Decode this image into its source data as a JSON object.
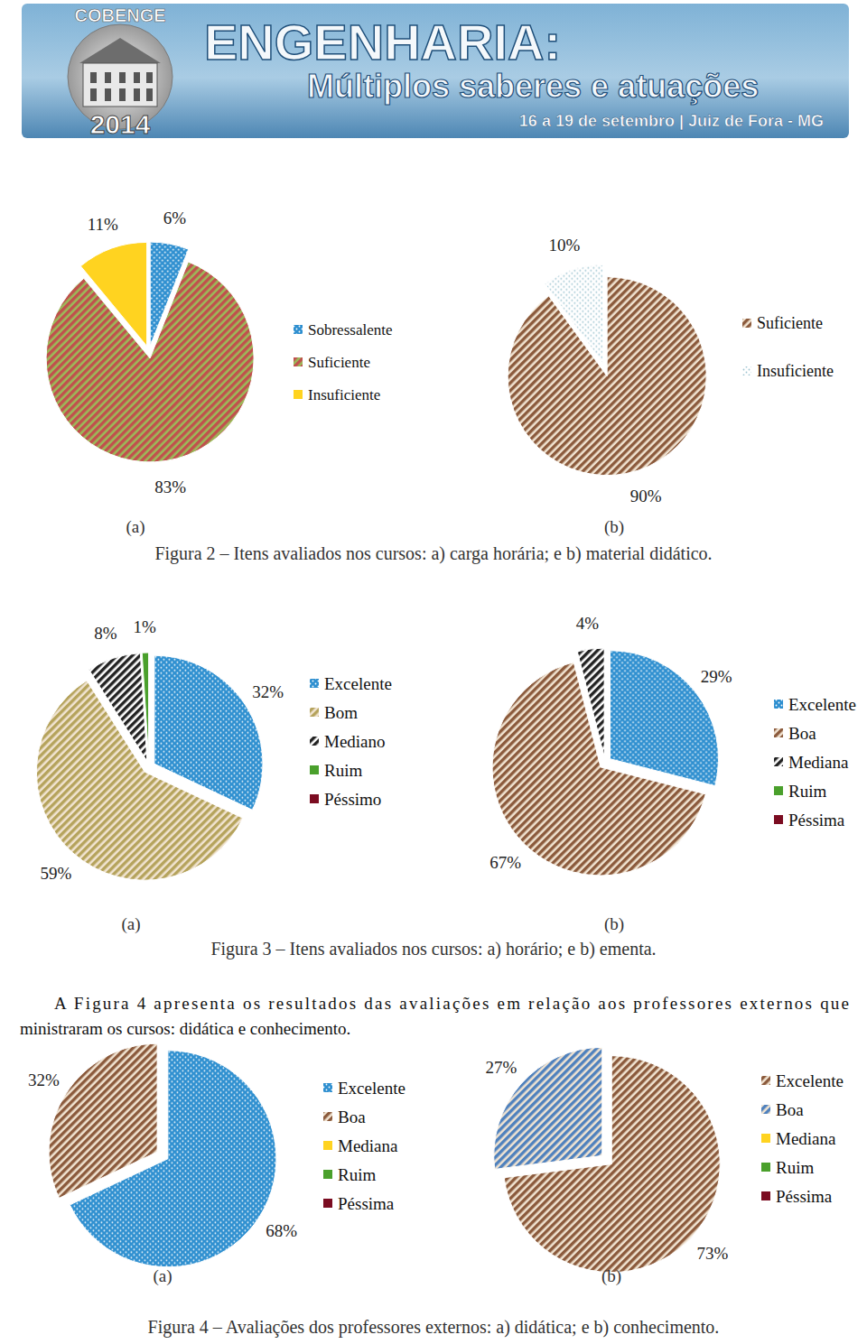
{
  "header": {
    "brand": "COBENGE",
    "year": "2014",
    "title": "ENGENHARIA:",
    "subtitle": "Múltiplos saberes e atuações",
    "dates": "16 a 19 de setembro | Juiz de Fora - MG"
  },
  "chart_data": [
    {
      "type": "pie",
      "categories": [
        "Sobressalente",
        "Suficiente",
        "Insuficiente"
      ],
      "values": [
        6,
        83,
        11
      ],
      "value_labels": [
        "6%",
        "83%",
        "11%"
      ],
      "colors": [
        "#2e8fd0",
        "#c0504d",
        "#ffd320"
      ],
      "data_labels": true,
      "legend": "right"
    },
    {
      "type": "pie",
      "categories": [
        "Suficiente",
        "Insuficiente"
      ],
      "values": [
        90,
        10
      ],
      "value_labels": [
        "90%",
        "10%"
      ],
      "colors": [
        "#8b5a3c",
        "#dbe9ee"
      ],
      "data_labels": true,
      "legend": "right"
    },
    {
      "type": "pie",
      "categories": [
        "Excelente",
        "Bom",
        "Mediano",
        "Ruim",
        "Péssimo"
      ],
      "values": [
        32,
        59,
        8,
        1,
        0
      ],
      "value_labels": [
        "32%",
        "59%",
        "8%",
        "1%",
        null
      ],
      "colors": [
        "#2e8fd0",
        "#b5a35c",
        "#222222",
        "#4aa02c",
        "#7b0c21"
      ],
      "data_labels": true,
      "legend": "right"
    },
    {
      "type": "pie",
      "categories": [
        "Excelente",
        "Boa",
        "Mediana",
        "Ruim",
        "Péssima"
      ],
      "values": [
        29,
        67,
        4,
        0,
        0
      ],
      "value_labels": [
        "29%",
        "67%",
        "4%",
        null,
        null
      ],
      "colors": [
        "#2e8fd0",
        "#8b5a3c",
        "#222222",
        "#4aa02c",
        "#7b0c21"
      ],
      "data_labels": true,
      "legend": "right"
    },
    {
      "type": "pie",
      "categories": [
        "Excelente",
        "Boa",
        "Mediana",
        "Ruim",
        "Péssima"
      ],
      "values": [
        68,
        32,
        0,
        0,
        0
      ],
      "value_labels": [
        "68%",
        "32%",
        null,
        null,
        null
      ],
      "colors": [
        "#2e8fd0",
        "#8b5a3c",
        "#ffd320",
        "#4aa02c",
        "#7b0c21"
      ],
      "data_labels": true,
      "legend": "right"
    },
    {
      "type": "pie",
      "categories": [
        "Excelente",
        "Boa",
        "Mediana",
        "Ruim",
        "Péssima"
      ],
      "values": [
        73,
        27,
        0,
        0,
        0
      ],
      "value_labels": [
        "73%",
        "27%",
        null,
        null,
        null
      ],
      "colors": [
        "#8b5a3c",
        "#4f81bd",
        "#ffd320",
        "#4aa02c",
        "#7b0c21"
      ],
      "data_labels": true,
      "legend": "right"
    }
  ],
  "figures": [
    {
      "panels": [
        "(a)",
        "(b)"
      ],
      "caption": "Figura 2 – Itens avaliados nos cursos: a) carga horária; e b) material didático."
    },
    {
      "panels": [
        "(a)",
        "(b)"
      ],
      "caption": "Figura 3 – Itens avaliados nos cursos: a) horário; e b) ementa."
    },
    {
      "panels": [
        "(a)",
        "(b)"
      ],
      "caption": "Figura 4 – Avaliações dos professores externos: a) didática; e b) conhecimento."
    }
  ],
  "paragraph": [
    "A Figura 4 apresenta os resultados das avaliações em relação aos professores externos que",
    "ministraram os cursos: didática e conhecimento."
  ]
}
